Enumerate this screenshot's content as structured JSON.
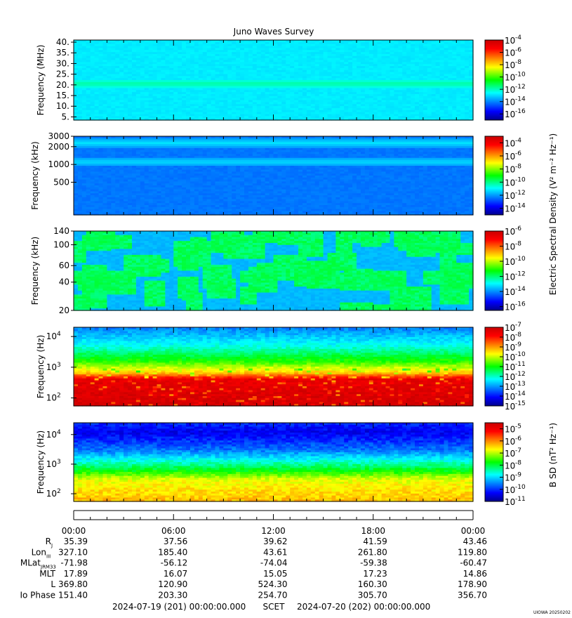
{
  "title": "Juno Waves Survey",
  "footer": {
    "start": "2024-07-19 (201) 00:00:00.000",
    "scet": "SCET",
    "end": "2024-07-20 (202) 00:00:00.000",
    "credit": "UIOWA 20250202"
  },
  "colorbar_labels": {
    "electric": "Electric Spectral Density (V² m⁻² Hz⁻¹)",
    "magnetic": "B SD (nT² Hz⁻¹)"
  },
  "ephemeris": {
    "time_labels": [
      "00:00",
      "06:00",
      "12:00",
      "18:00",
      "00:00"
    ],
    "rows": [
      {
        "label": "R",
        "sub": "J",
        "values": [
          "35.39",
          "37.56",
          "39.62",
          "41.59",
          "43.46"
        ]
      },
      {
        "label": "Lon",
        "sub": "III",
        "values": [
          "327.10",
          "185.40",
          "43.61",
          "261.80",
          "119.80"
        ]
      },
      {
        "label": "MLat",
        "sub": "JRM33",
        "values": [
          "-71.98",
          "-56.12",
          "-74.04",
          "-59.38",
          "-60.47"
        ]
      },
      {
        "label": "MLT",
        "sub": "",
        "values": [
          "17.89",
          "16.07",
          "15.05",
          "17.23",
          "14.86"
        ]
      },
      {
        "label": "L",
        "sub": "",
        "values": [
          "369.80",
          "120.90",
          "524.30",
          "160.30",
          "178.90"
        ]
      },
      {
        "label": "Io Phase",
        "sub": "",
        "values": [
          "151.40",
          "203.30",
          "254.70",
          "305.70",
          "356.70"
        ]
      }
    ]
  },
  "chart_data": [
    {
      "type": "heatmap",
      "ylabel": "Frequency (MHz)",
      "yticks": [
        "40.",
        "35.",
        "30.",
        "25.",
        "20.",
        "15.",
        "10.",
        "5."
      ],
      "ylim": [
        3.5,
        41
      ],
      "yscale": "linear",
      "colorbar": {
        "exponents": [
          "-4",
          "-6",
          "-8",
          "-10",
          "-12",
          "-14",
          "-16"
        ],
        "range": [
          -17,
          -4
        ]
      },
      "bands": [
        {
          "y": 20.5,
          "level": -11.8
        }
      ],
      "background_level": -12.8
    },
    {
      "type": "heatmap",
      "ylabel": "Frequency (kHz)",
      "yticks": [
        "3000",
        "2000",
        "1000",
        "500"
      ],
      "ylim": [
        140,
        3000
      ],
      "yscale": "log",
      "colorbar": {
        "exponents": [
          "-4",
          "-6",
          "-8",
          "-10",
          "-12",
          "-14"
        ],
        "range": [
          -15,
          -3
        ]
      },
      "bands": [
        {
          "y": 2300,
          "level": -11.2
        },
        {
          "y": 1100,
          "level": -11.3
        }
      ],
      "background_level": -12.4
    },
    {
      "type": "heatmap",
      "ylabel": "Frequency (kHz)",
      "yticks": [
        "140",
        "100",
        "60",
        "40",
        "20"
      ],
      "ylim": [
        20,
        140
      ],
      "yscale": "log",
      "colorbar": {
        "exponents": [
          "-6",
          "-8",
          "-10",
          "-12",
          "-14",
          "-16"
        ],
        "range": [
          -16.5,
          -6
        ]
      },
      "background_level": -13.6,
      "bursts": "intermittent drifting emission features, -12.5 to -11.5"
    },
    {
      "type": "heatmap",
      "ylabel": "Frequency (Hz)",
      "yticks": [
        "10^4",
        "10^3",
        "10^2"
      ],
      "ylim": [
        55,
        20000
      ],
      "yscale": "log",
      "colorbar": {
        "exponents": [
          "-7",
          "-8",
          "-9",
          "-10",
          "-11",
          "-12",
          "-13",
          "-14",
          "-15"
        ],
        "range": [
          -15,
          -7
        ]
      },
      "profile": [
        [
          55,
          -7.2
        ],
        [
          400,
          -7.5
        ],
        [
          650,
          -9.3
        ],
        [
          1500,
          -10.8
        ],
        [
          5000,
          -12.2
        ],
        [
          20000,
          -13.2
        ]
      ]
    },
    {
      "type": "heatmap",
      "ylabel": "Frequency (Hz)",
      "yticks": [
        "10^4",
        "10^3",
        "10^2"
      ],
      "ylim": [
        55,
        25000
      ],
      "yscale": "log",
      "colorbar": {
        "exponents": [
          "-5",
          "-6",
          "-7",
          "-8",
          "-9",
          "-10",
          "-11"
        ],
        "range": [
          -11,
          -4.5
        ]
      },
      "profile": [
        [
          55,
          -6.3
        ],
        [
          300,
          -6.8
        ],
        [
          600,
          -7.8
        ],
        [
          1200,
          -8.6
        ],
        [
          3000,
          -9.6
        ],
        [
          12000,
          -10.4
        ],
        [
          25000,
          -10.0
        ]
      ]
    }
  ]
}
